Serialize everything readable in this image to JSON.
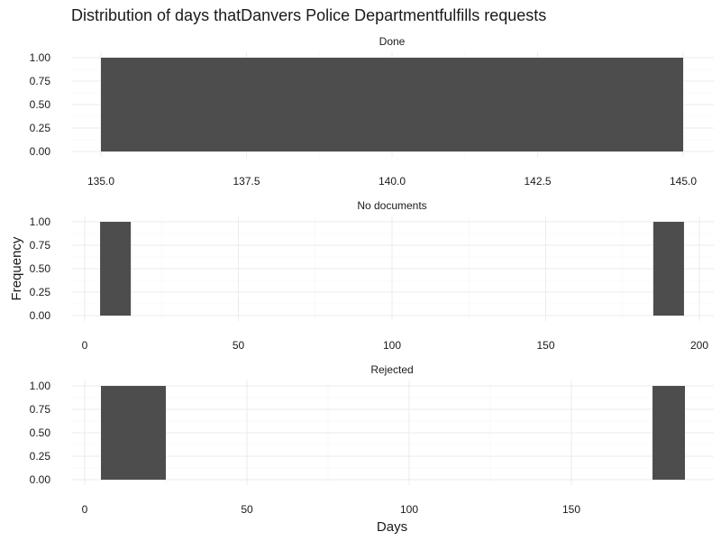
{
  "chart_data": {
    "type": "bar",
    "title": "Distribution of days thatDanvers Police Departmentfulfills requests",
    "xlabel": "Days",
    "ylabel": "Frequency",
    "grid": true,
    "facets": [
      {
        "name": "Done",
        "xlim": [
          134.5,
          145.5
        ],
        "x_ticks": [
          "135.0",
          "137.5",
          "140.0",
          "142.5",
          "145.0"
        ],
        "x_tick_values": [
          135,
          137.5,
          140,
          142.5,
          145
        ],
        "ylim": [
          0,
          1
        ],
        "y_ticks": [
          "0.00",
          "0.25",
          "0.50",
          "0.75",
          "1.00"
        ],
        "y_tick_values": [
          0,
          0.25,
          0.5,
          0.75,
          1
        ],
        "bars": [
          {
            "x_start": 135,
            "x_end": 145,
            "value": 1
          }
        ]
      },
      {
        "name": "No documents",
        "xlim": [
          0,
          200
        ],
        "x_ticks": [
          "0",
          "50",
          "100",
          "150",
          "200"
        ],
        "x_tick_values": [
          0,
          50,
          100,
          150,
          200
        ],
        "ylim": [
          0,
          1
        ],
        "y_ticks": [
          "0.00",
          "0.25",
          "0.50",
          "0.75",
          "1.00"
        ],
        "y_tick_values": [
          0,
          0.25,
          0.5,
          0.75,
          1
        ],
        "bars": [
          {
            "x_start": 5,
            "x_end": 15,
            "value": 1
          },
          {
            "x_start": 185,
            "x_end": 195,
            "value": 1
          }
        ]
      },
      {
        "name": "Rejected",
        "xlim": [
          0,
          185
        ],
        "x_ticks": [
          "0",
          "50",
          "100",
          "150"
        ],
        "x_tick_values": [
          0,
          50,
          100,
          150
        ],
        "ylim": [
          0,
          1
        ],
        "y_ticks": [
          "0.00",
          "0.25",
          "0.50",
          "0.75",
          "1.00"
        ],
        "y_tick_values": [
          0,
          0.25,
          0.5,
          0.75,
          1
        ],
        "bars": [
          {
            "x_start": 5,
            "x_end": 25,
            "value": 1
          },
          {
            "x_start": 175,
            "x_end": 185,
            "value": 1
          }
        ]
      }
    ],
    "colors": {
      "bar": "#4d4d4d",
      "grid_major": "#ebebeb",
      "grid_minor": "#f5f5f5",
      "text": "#1a1a1a",
      "tick_text": "#4d4d4d"
    }
  }
}
